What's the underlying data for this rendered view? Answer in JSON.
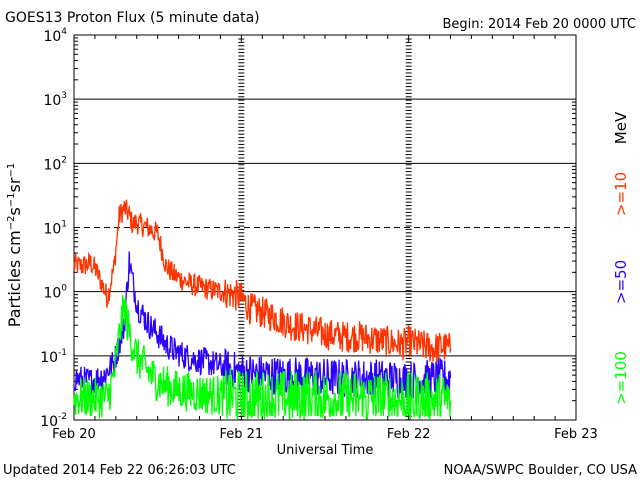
{
  "header": {
    "title": "GOES13 Proton Flux (5 minute data)",
    "begin": "Begin: 2014 Feb 20 0000 UTC"
  },
  "footer": {
    "updated": "Updated 2014 Feb 22 06:26:03 UTC",
    "credit": "NOAA/SWPC Boulder, CO USA"
  },
  "legend": {
    "unit": "MeV",
    "entries": [
      {
        "label": ">=10",
        "color": "#ff3300"
      },
      {
        "label": ">=50",
        "color": "#2a00ff"
      },
      {
        "label": ">=100",
        "color": "#00ff00"
      }
    ]
  },
  "chart_data": {
    "type": "line",
    "title": "GOES13 Proton Flux (5 minute data)",
    "xlabel": "Universal Time",
    "ylabel": "Particles cm^-2 s^-1 sr^-1",
    "y_scale": "log",
    "ylim": [
      0.01,
      10000
    ],
    "xlim_days": [
      0,
      3
    ],
    "x_tick_labels": [
      "Feb 20",
      "Feb 21",
      "Feb 22",
      "Feb 23"
    ],
    "y_ticks": [
      {
        "base": "10",
        "exp": "-2"
      },
      {
        "base": "10",
        "exp": "-1"
      },
      {
        "base": "10",
        "exp": "0"
      },
      {
        "base": "10",
        "exp": "1"
      },
      {
        "base": "10",
        "exp": "2"
      },
      {
        "base": "10",
        "exp": "3"
      },
      {
        "base": "10",
        "exp": "4"
      }
    ],
    "series": [
      {
        "name": ">=10 MeV",
        "color": "#ff3300",
        "x": [
          0,
          0.05,
          0.1,
          0.13,
          0.18,
          0.2,
          0.24,
          0.27,
          0.3,
          0.33,
          0.35,
          0.37,
          0.4,
          0.44,
          0.47,
          0.5,
          0.55,
          0.6,
          0.65,
          0.7,
          0.75,
          0.8,
          0.88,
          0.95,
          1.0,
          1.05,
          1.1,
          1.15,
          1.2,
          1.3,
          1.4,
          1.5,
          1.6,
          1.7,
          1.8,
          1.9,
          1.97,
          2.0,
          2.05,
          2.1,
          2.15,
          2.2,
          2.25
        ],
        "y": [
          2.6,
          2.5,
          2.8,
          2.2,
          1.1,
          0.8,
          2.5,
          15,
          20,
          16,
          11,
          12,
          11,
          10,
          9,
          8,
          2.5,
          1.8,
          1.5,
          1.3,
          1.2,
          1.1,
          1.0,
          0.9,
          0.8,
          0.55,
          0.5,
          0.45,
          0.4,
          0.3,
          0.26,
          0.22,
          0.2,
          0.2,
          0.18,
          0.16,
          0.15,
          0.17,
          0.15,
          0.14,
          0.13,
          0.14,
          0.13
        ]
      },
      {
        "name": ">=50 MeV",
        "color": "#2a00ff",
        "x": [
          0,
          0.1,
          0.18,
          0.24,
          0.3,
          0.33,
          0.35,
          0.38,
          0.42,
          0.45,
          0.5,
          0.55,
          0.6,
          0.7,
          0.8,
          0.9,
          1.0,
          1.2,
          1.4,
          1.6,
          1.8,
          2.0,
          2.25
        ],
        "y": [
          0.045,
          0.04,
          0.05,
          0.08,
          0.3,
          3.0,
          1.5,
          0.6,
          0.4,
          0.3,
          0.22,
          0.15,
          0.12,
          0.09,
          0.08,
          0.065,
          0.055,
          0.05,
          0.048,
          0.045,
          0.045,
          0.042,
          0.045
        ]
      },
      {
        "name": ">=100 MeV",
        "color": "#00ff00",
        "x": [
          0,
          0.1,
          0.2,
          0.24,
          0.27,
          0.3,
          0.32,
          0.35,
          0.38,
          0.42,
          0.46,
          0.5,
          0.6,
          0.8,
          1.0,
          1.4,
          1.8,
          2.0,
          2.25
        ],
        "y": [
          0.022,
          0.022,
          0.022,
          0.05,
          0.2,
          0.6,
          0.3,
          0.15,
          0.09,
          0.07,
          0.05,
          0.04,
          0.03,
          0.025,
          0.022,
          0.022,
          0.021,
          0.02,
          0.02
        ]
      }
    ],
    "grid": "horizontal lines at decades, dashed at 10^1"
  }
}
